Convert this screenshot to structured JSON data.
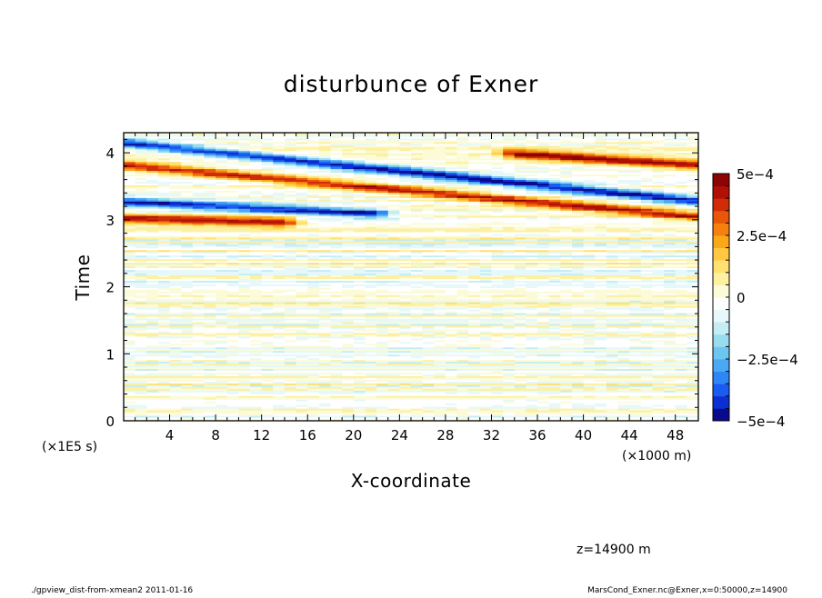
{
  "chart_data": {
    "type": "heatmap",
    "title": "disturbunce of Exner",
    "xlabel": "X-coordinate",
    "ylabel": "Time",
    "x_unit_label": "(×1000 m)",
    "y_unit_label": "(×1E5 s)",
    "xlim": [
      0,
      50
    ],
    "ylim": [
      0,
      4.3
    ],
    "x_ticks": [
      "4",
      "8",
      "12",
      "16",
      "20",
      "24",
      "28",
      "32",
      "36",
      "40",
      "44",
      "48"
    ],
    "x_tick_values": [
      4,
      8,
      12,
      16,
      20,
      24,
      28,
      32,
      36,
      40,
      44,
      48
    ],
    "y_ticks": [
      "0",
      "1",
      "2",
      "3",
      "4"
    ],
    "y_tick_values": [
      0,
      1,
      2,
      3,
      4
    ],
    "colorbar": {
      "range": [
        -0.0005,
        0.0005
      ],
      "tick_labels": [
        "5e−4",
        "2.5e−4",
        "0",
        "−2.5e−4",
        "−5e−4"
      ],
      "tick_values": [
        0.0005,
        0.00025,
        0,
        -0.00025,
        -0.0005
      ],
      "colors": [
        "#0a0a8c",
        "#0b2fd0",
        "#1a5cf0",
        "#2f86f5",
        "#4aa8f5",
        "#6cc6f0",
        "#98dcf0",
        "#c4edf5",
        "#e6f8fa",
        "#ffffff",
        "#fbfbd8",
        "#fdf0a0",
        "#ffe070",
        "#ffc840",
        "#fba818",
        "#f58010",
        "#e8560a",
        "#d02c08",
        "#b01005",
        "#8c0404"
      ]
    },
    "bands": [
      {
        "name": "blue-1",
        "t_start": 3.27,
        "t_end": 2.88,
        "x_start": 0,
        "x_end": 22,
        "value": -0.00045
      },
      {
        "name": "red-1",
        "t_start": 3.02,
        "t_end": 2.85,
        "x_start": 0,
        "x_end": 14,
        "value": 0.00045
      },
      {
        "name": "red-2",
        "t_start": 3.82,
        "t_end": 3.05,
        "x_start": 0,
        "x_end": 50,
        "value": 0.00042
      },
      {
        "name": "blue-2",
        "t_start": 4.15,
        "t_end": 3.28,
        "x_start": 0,
        "x_end": 50,
        "value": -0.00045
      },
      {
        "name": "red-3",
        "t_start": 4.35,
        "t_end": 3.82,
        "x_start": 34,
        "x_end": 50,
        "value": 0.00045
      }
    ]
  },
  "annotation": "z=14900 m",
  "footer": {
    "left": "./gpview_dist-from-xmean2  2011-01-16",
    "right": "MarsCond_Exner.nc@Exner,x=0:50000,z=14900"
  }
}
